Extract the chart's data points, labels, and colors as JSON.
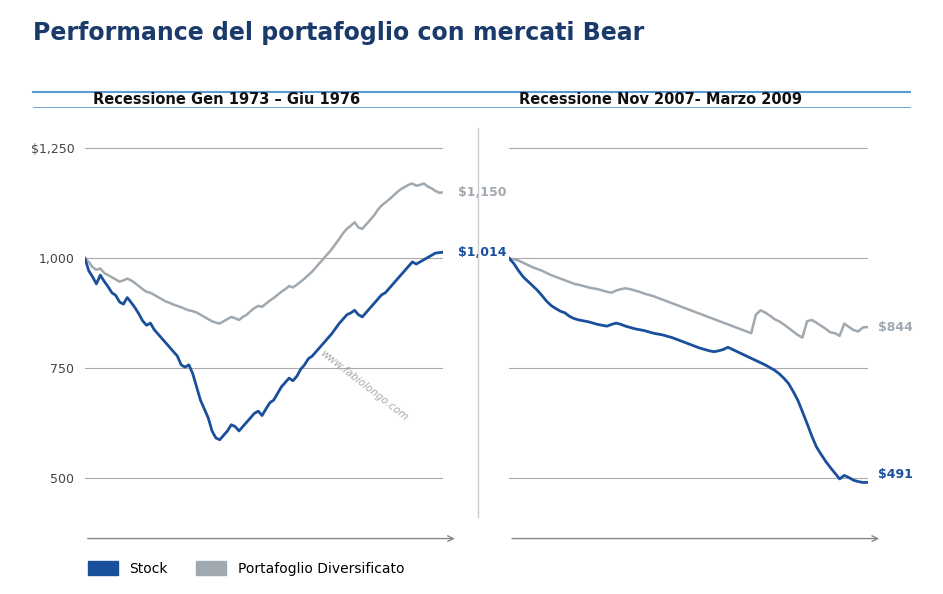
{
  "title": "Performance del portafoglio con mercati Bear",
  "title_color": "#1a3a6b",
  "title_fontsize": 17,
  "subtitle1": "Recessione Gen 1973 – Giu 1976",
  "subtitle2": "Recessione Nov 2007- Marzo 2009",
  "subtitle_fontsize": 10.5,
  "stock_color": "#1a4f9c",
  "diversified_color": "#a0a8b0",
  "watermark": "www.fabiolongo.com",
  "legend_stock": "Stock",
  "legend_diversified": "Portafoglio Diversificato",
  "ylim": [
    440,
    1290
  ],
  "yticks": [
    500,
    750,
    1000,
    1250
  ],
  "ytick_labels_left": [
    "500",
    "750",
    "1,000",
    "$1,250"
  ],
  "chart1_stock": [
    1000,
    972,
    958,
    942,
    962,
    948,
    936,
    922,
    916,
    901,
    896,
    911,
    900,
    888,
    874,
    858,
    848,
    853,
    838,
    828,
    818,
    808,
    798,
    788,
    778,
    758,
    753,
    758,
    738,
    708,
    678,
    658,
    638,
    608,
    592,
    588,
    598,
    608,
    622,
    618,
    608,
    618,
    628,
    638,
    648,
    653,
    643,
    658,
    672,
    678,
    693,
    708,
    718,
    728,
    722,
    732,
    748,
    758,
    772,
    778,
    788,
    798,
    808,
    818,
    828,
    840,
    852,
    862,
    872,
    876,
    882,
    872,
    867,
    877,
    887,
    897,
    907,
    917,
    922,
    932,
    942,
    952,
    962,
    972,
    982,
    992,
    987,
    992,
    997,
    1002,
    1007,
    1012,
    1013,
    1014
  ],
  "chart1_diversified": [
    1000,
    992,
    980,
    974,
    977,
    967,
    962,
    957,
    952,
    947,
    950,
    954,
    950,
    944,
    937,
    930,
    924,
    922,
    917,
    912,
    907,
    902,
    899,
    895,
    892,
    889,
    885,
    882,
    880,
    877,
    872,
    867,
    862,
    857,
    854,
    852,
    857,
    862,
    867,
    864,
    860,
    867,
    872,
    880,
    887,
    892,
    890,
    897,
    904,
    910,
    917,
    924,
    930,
    937,
    934,
    940,
    947,
    954,
    962,
    970,
    980,
    990,
    1000,
    1010,
    1020,
    1032,
    1044,
    1057,
    1067,
    1074,
    1082,
    1070,
    1067,
    1077,
    1087,
    1097,
    1110,
    1120,
    1127,
    1134,
    1142,
    1150,
    1157,
    1162,
    1167,
    1170,
    1165,
    1167,
    1170,
    1163,
    1159,
    1153,
    1149,
    1150
  ],
  "chart2_stock": [
    1000,
    988,
    972,
    958,
    948,
    938,
    928,
    916,
    903,
    893,
    886,
    880,
    876,
    868,
    863,
    860,
    858,
    856,
    853,
    850,
    848,
    846,
    850,
    853,
    850,
    846,
    843,
    840,
    838,
    836,
    833,
    830,
    828,
    826,
    823,
    820,
    816,
    812,
    808,
    804,
    800,
    796,
    793,
    790,
    788,
    790,
    793,
    798,
    793,
    788,
    783,
    778,
    773,
    768,
    763,
    758,
    752,
    746,
    738,
    728,
    716,
    698,
    678,
    652,
    625,
    597,
    572,
    555,
    539,
    525,
    512,
    499,
    507,
    502,
    496,
    493,
    491,
    491
  ],
  "chart2_diversified": [
    1000,
    998,
    995,
    990,
    985,
    980,
    976,
    972,
    967,
    962,
    958,
    954,
    950,
    946,
    942,
    940,
    937,
    934,
    932,
    930,
    927,
    924,
    922,
    927,
    930,
    932,
    930,
    927,
    924,
    920,
    917,
    914,
    910,
    906,
    902,
    898,
    894,
    890,
    886,
    882,
    878,
    874,
    870,
    866,
    862,
    858,
    854,
    850,
    846,
    842,
    838,
    834,
    830,
    872,
    882,
    877,
    870,
    862,
    857,
    850,
    842,
    834,
    826,
    820,
    857,
    860,
    854,
    847,
    840,
    832,
    830,
    824,
    852,
    844,
    837,
    834,
    843,
    844
  ]
}
